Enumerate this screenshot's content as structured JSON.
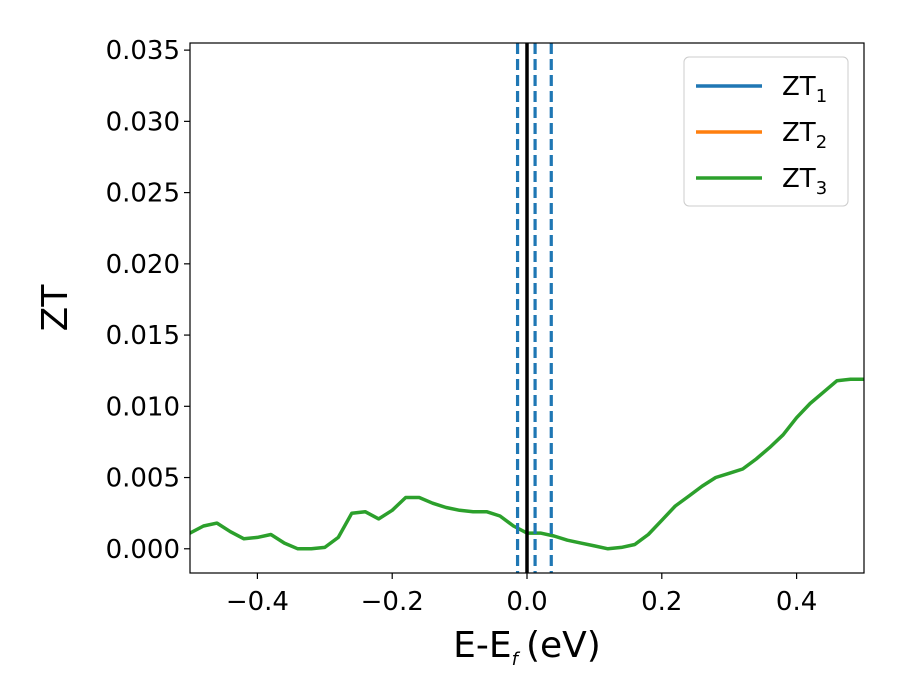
{
  "chart_data": {
    "type": "line",
    "xlabel": "E-E",
    "xlabel_sub": "f",
    "xlabel_unit": "(eV)",
    "ylabel": "ZT",
    "xlim": [
      -0.5,
      0.5
    ],
    "ylim": [
      -0.0017,
      0.0355
    ],
    "xticks": [
      -0.4,
      -0.2,
      0.0,
      0.2,
      0.4
    ],
    "xtick_labels": [
      "−0.4",
      "−0.2",
      "0.0",
      "0.2",
      "0.4"
    ],
    "yticks": [
      0.0,
      0.005,
      0.01,
      0.015,
      0.02,
      0.025,
      0.03,
      0.035
    ],
    "ytick_labels": [
      "0.000",
      "0.005",
      "0.010",
      "0.015",
      "0.020",
      "0.025",
      "0.030",
      "0.035"
    ],
    "grid": false,
    "legend_position": "top-right",
    "series": [
      {
        "name": "ZT",
        "sub": "1",
        "color": "#1f77b4",
        "x": [],
        "y": []
      },
      {
        "name": "ZT",
        "sub": "2",
        "color": "#ff7f0e",
        "x": [],
        "y": []
      },
      {
        "name": "ZT",
        "sub": "3",
        "color": "#2ca02c",
        "x": [
          -0.5,
          -0.48,
          -0.46,
          -0.44,
          -0.42,
          -0.4,
          -0.38,
          -0.36,
          -0.34,
          -0.32,
          -0.3,
          -0.28,
          -0.26,
          -0.24,
          -0.22,
          -0.2,
          -0.18,
          -0.16,
          -0.14,
          -0.12,
          -0.1,
          -0.08,
          -0.06,
          -0.04,
          -0.02,
          0.0,
          0.02,
          0.04,
          0.06,
          0.08,
          0.1,
          0.12,
          0.14,
          0.16,
          0.18,
          0.2,
          0.22,
          0.24,
          0.26,
          0.28,
          0.3,
          0.32,
          0.34,
          0.36,
          0.38,
          0.4,
          0.42,
          0.44,
          0.46,
          0.48,
          0.5
        ],
        "y": [
          0.0011,
          0.0016,
          0.0018,
          0.0012,
          0.0007,
          0.0008,
          0.001,
          0.0004,
          0.0,
          0.0,
          0.0001,
          0.0008,
          0.0025,
          0.0026,
          0.0021,
          0.0027,
          0.0036,
          0.0036,
          0.0032,
          0.0029,
          0.0027,
          0.0026,
          0.0026,
          0.0023,
          0.0016,
          0.0011,
          0.0011,
          0.0009,
          0.0006,
          0.0004,
          0.0002,
          0.0,
          0.0001,
          0.0003,
          0.001,
          0.002,
          0.003,
          0.0037,
          0.0044,
          0.005,
          0.0053,
          0.0056,
          0.0063,
          0.0071,
          0.008,
          0.0092,
          0.0102,
          0.011,
          0.0118,
          0.0119,
          0.0119
        ]
      }
    ],
    "vlines": [
      {
        "x": 0.0,
        "color": "#000000",
        "style": "solid"
      },
      {
        "x": -0.014,
        "color": "#1f77b4",
        "style": "dashed"
      },
      {
        "x": 0.012,
        "color": "#1f77b4",
        "style": "dashed"
      },
      {
        "x": 0.036,
        "color": "#1f77b4",
        "style": "dashed"
      }
    ]
  }
}
